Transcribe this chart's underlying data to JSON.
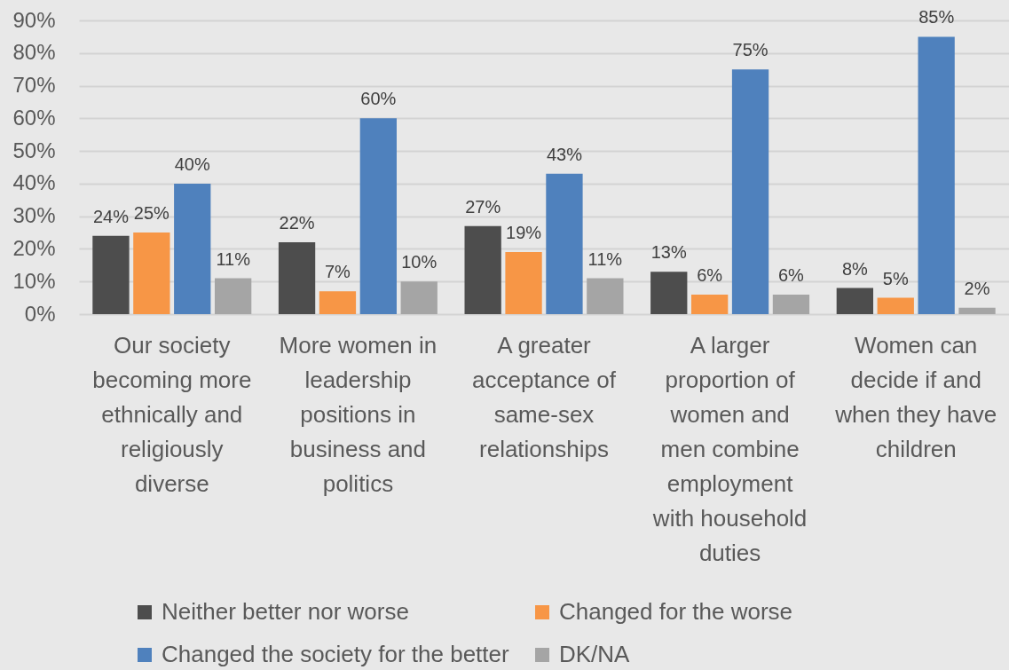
{
  "chart_data": {
    "type": "bar",
    "categories": [
      "Our society becoming more ethnically and religiously diverse",
      "More women in leadership positions in business and politics",
      "A greater acceptance of same-sex relationships",
      "A larger proportion of women and men combine employment with household duties",
      "Women can decide if and when they have children"
    ],
    "series": [
      {
        "name": "Neither better nor worse",
        "color": "#4d4d4d",
        "values": [
          24,
          22,
          27,
          13,
          8
        ],
        "value_labels": [
          "24%",
          "22%",
          "27%",
          "13%",
          "8%"
        ]
      },
      {
        "name": "Changed for the worse",
        "color": "#f79646",
        "values": [
          25,
          7,
          19,
          6,
          5
        ],
        "value_labels": [
          "25%",
          "7%",
          "19%",
          "6%",
          "5%"
        ]
      },
      {
        "name": "Changed the society for the better",
        "color": "#4f81bd",
        "values": [
          40,
          60,
          43,
          75,
          85
        ],
        "value_labels": [
          "40%",
          "60%",
          "43%",
          "75%",
          "85%"
        ]
      },
      {
        "name": "DK/NA",
        "color": "#a5a5a5",
        "values": [
          11,
          10,
          11,
          6,
          2
        ],
        "value_labels": [
          "11%",
          "10%",
          "11%",
          "6%",
          "2%"
        ]
      }
    ],
    "ylim": [
      0,
      90
    ],
    "yticks": [
      {
        "value": 0,
        "label": "0%"
      },
      {
        "value": 10,
        "label": "10%"
      },
      {
        "value": 20,
        "label": "20%"
      },
      {
        "value": 30,
        "label": "30%"
      },
      {
        "value": 40,
        "label": "40%"
      },
      {
        "value": 50,
        "label": "50%"
      },
      {
        "value": 60,
        "label": "60%"
      },
      {
        "value": 70,
        "label": "70%"
      },
      {
        "value": 80,
        "label": "80%"
      },
      {
        "value": 90,
        "label": "90%"
      }
    ],
    "grid": "y",
    "legend": "bottom"
  }
}
